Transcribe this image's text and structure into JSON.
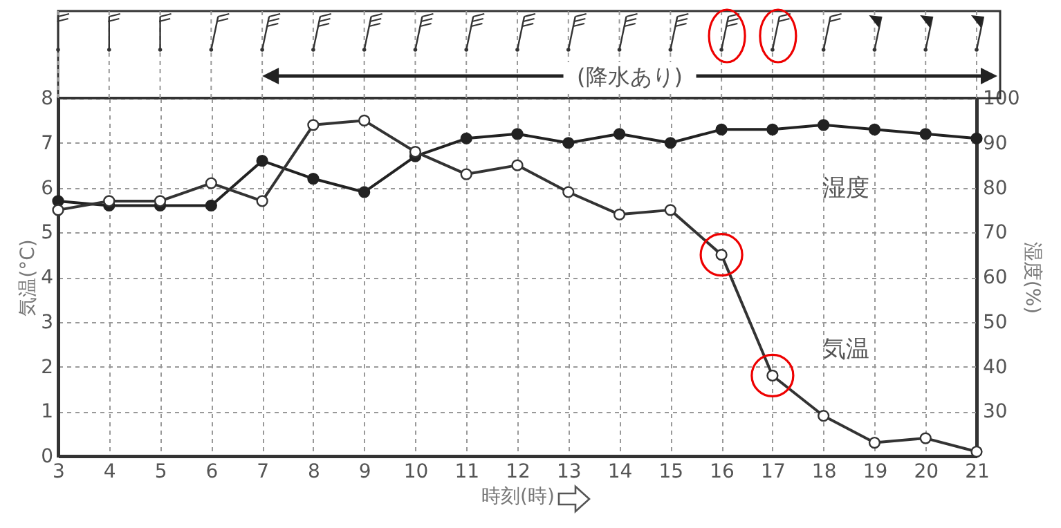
{
  "chart_data": {
    "type": "line",
    "xlabel": "時刻(時)",
    "ylabel": "気温(°C)",
    "y2label": "湿度(%)",
    "x": [
      3,
      4,
      5,
      6,
      7,
      8,
      9,
      10,
      11,
      12,
      13,
      14,
      15,
      16,
      17,
      18,
      19,
      20,
      21
    ],
    "xlim": [
      3,
      21
    ],
    "xticks": [
      3,
      4,
      5,
      6,
      7,
      8,
      9,
      10,
      11,
      12,
      13,
      14,
      15,
      16,
      17,
      18,
      19,
      20,
      21
    ],
    "ylim": [
      0,
      8
    ],
    "yticks": [
      0,
      1,
      2,
      3,
      4,
      5,
      6,
      7,
      8
    ],
    "y2lim": [
      20,
      100
    ],
    "y2ticks": [
      30,
      40,
      50,
      60,
      70,
      80,
      90,
      100
    ],
    "grid": true,
    "marker": "circle",
    "line_style": "solid",
    "annotations": [
      "(降水あり)"
    ],
    "series": [
      {
        "name": "気温",
        "color": "#333333",
        "values": [
          5.5,
          5.7,
          5.7,
          6.1,
          5.7,
          7.4,
          7.5,
          6.8,
          6.3,
          6.5,
          5.9,
          5.4,
          5.5,
          4.5,
          1.8,
          0.9,
          0.3,
          0.4,
          0.1
        ]
      },
      {
        "name": "湿度",
        "color": "#222222",
        "axis": "y2",
        "values": [
          77,
          76,
          76,
          76,
          86,
          82,
          79,
          87,
          91,
          92,
          90,
          92,
          90,
          93,
          93,
          94,
          93,
          92,
          91
        ]
      }
    ]
  }
}
